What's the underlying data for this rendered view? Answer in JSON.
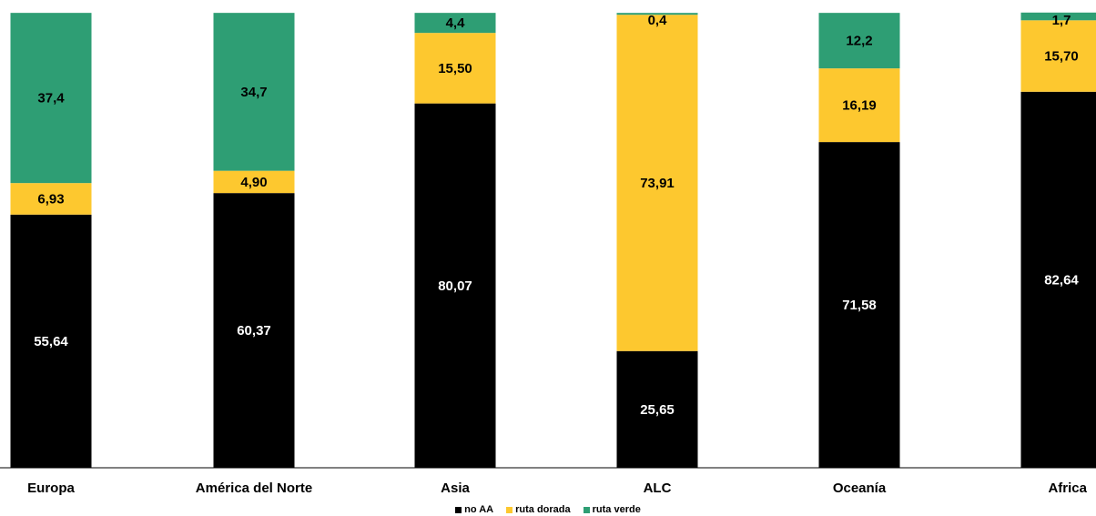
{
  "chart_data": {
    "type": "bar",
    "stacked": true,
    "categories": [
      "Europa",
      "América del Norte",
      "Asia",
      "ALC",
      "Oceanía",
      "Africa"
    ],
    "series": [
      {
        "name": "no AA",
        "color": "#000000",
        "values": [
          55.64,
          60.37,
          80.07,
          25.65,
          71.58,
          82.64
        ],
        "labels": [
          "55,64",
          "60,37",
          "80,07",
          "25,65",
          "71,58",
          "82,64"
        ],
        "label_color": "#ffffff"
      },
      {
        "name": "ruta dorada",
        "color": "#FDC82F",
        "values": [
          6.93,
          4.9,
          15.5,
          73.91,
          16.19,
          15.7
        ],
        "labels": [
          "6,93",
          "4,90",
          "15,50",
          "73,91",
          "16,19",
          "15,70"
        ],
        "label_color": "#000000"
      },
      {
        "name": "ruta verde",
        "color": "#2E9E74",
        "values": [
          37.4,
          34.7,
          4.4,
          0.4,
          12.2,
          1.7
        ],
        "labels": [
          "37,4",
          "34,7",
          "4,4",
          "0,4",
          "12,2",
          "1,7"
        ],
        "label_color": "#000000"
      }
    ],
    "ylim": [
      0,
      100
    ],
    "grid": false,
    "legend_position": "bottom"
  }
}
